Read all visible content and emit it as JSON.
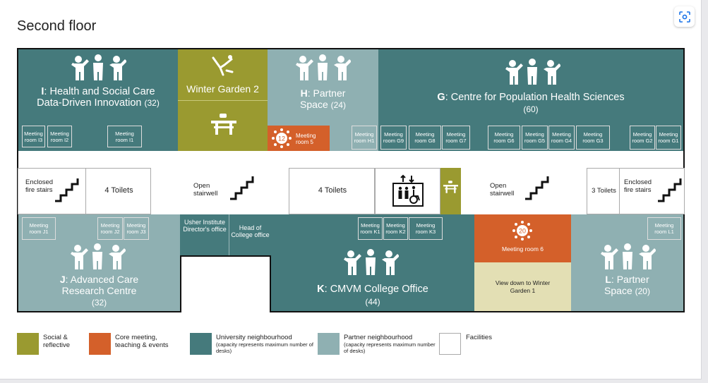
{
  "title": "Second floor",
  "rooms": {
    "I": {
      "letter": "I",
      "rest": ": Health and Social Care",
      "line2": "Data-Driven Innovation",
      "cap": "(32)"
    },
    "winter2": "Winter Garden 2",
    "H": {
      "letter": "H",
      "rest": ": Partner",
      "line2": "Space",
      "cap": "(24)"
    },
    "G": {
      "letter": "G",
      "rest": ": Centre for Population Health Sciences",
      "cap": "(60)"
    },
    "J": {
      "letter": "J",
      "rest": ": Advanced Care",
      "line2": "Research Centre",
      "cap": "(32)"
    },
    "K": {
      "letter": "K",
      "rest": ": CMVM College Office",
      "cap": "(44)"
    },
    "L": {
      "letter": "L",
      "rest": ": Partner",
      "line2": "Space",
      "cap": "(20)"
    },
    "usher": "Usher Institute Director's office",
    "head": "Head of College office",
    "meeting5": "Meeting room 5",
    "meeting5_cap": "12",
    "meeting6": "Meeting room 6",
    "meeting6_cap": "20",
    "viewdown": "View down to Winter Garden 1"
  },
  "meeting_rooms": {
    "I3": "Meeting room I3",
    "I2": "Meeting room I2",
    "I1": "Meeting room I1",
    "H1": "Meeting room H1",
    "G9": "Meeting room G9",
    "G8": "Meeting room G8",
    "G7": "Meeting room G7",
    "G6": "Meeting room G6",
    "G5": "Meeting room G5",
    "G4": "Meeting room G4",
    "G3": "Meeting room G3",
    "G2": "Meeting room G2",
    "G1": "Meeting room G1",
    "J1": "Meeting room J1",
    "J2": "Meeting room J2",
    "J3": "Meeting room J3",
    "K1": "Meeting room K1",
    "K2": "Meeting room K2",
    "K3": "Meeting room K3",
    "L1": "Meeting room L1"
  },
  "facilities": {
    "enclosed_left": "Enclosed fire stairs",
    "toilets_left": "4 Toilets",
    "open_left": "Open stairwell",
    "toilets_mid": "4 Toilets",
    "open_right": "Open stairwell",
    "toilets_right": "3 Toilets",
    "enclosed_right": "Enclosed fire stairs"
  },
  "legend": [
    {
      "label": "Social & reflective",
      "note": "",
      "color": "#9a9a30"
    },
    {
      "label": "Core meeting, teaching & events",
      "note": "",
      "color": "#d4602a"
    },
    {
      "label": "University neighbourhood",
      "note": "(capacity represents maximum number of desks)",
      "color": "#457a7c"
    },
    {
      "label": "Partner neighbourhood",
      "note": "(capacity represents maximum number of desks)",
      "color": "#8fb0b2"
    },
    {
      "label": "Facilities",
      "note": "",
      "color": "#ffffff"
    }
  ],
  "icons": [
    "people-icon",
    "bench-icon",
    "relax-icon",
    "stairs-icon",
    "lift-icon"
  ]
}
